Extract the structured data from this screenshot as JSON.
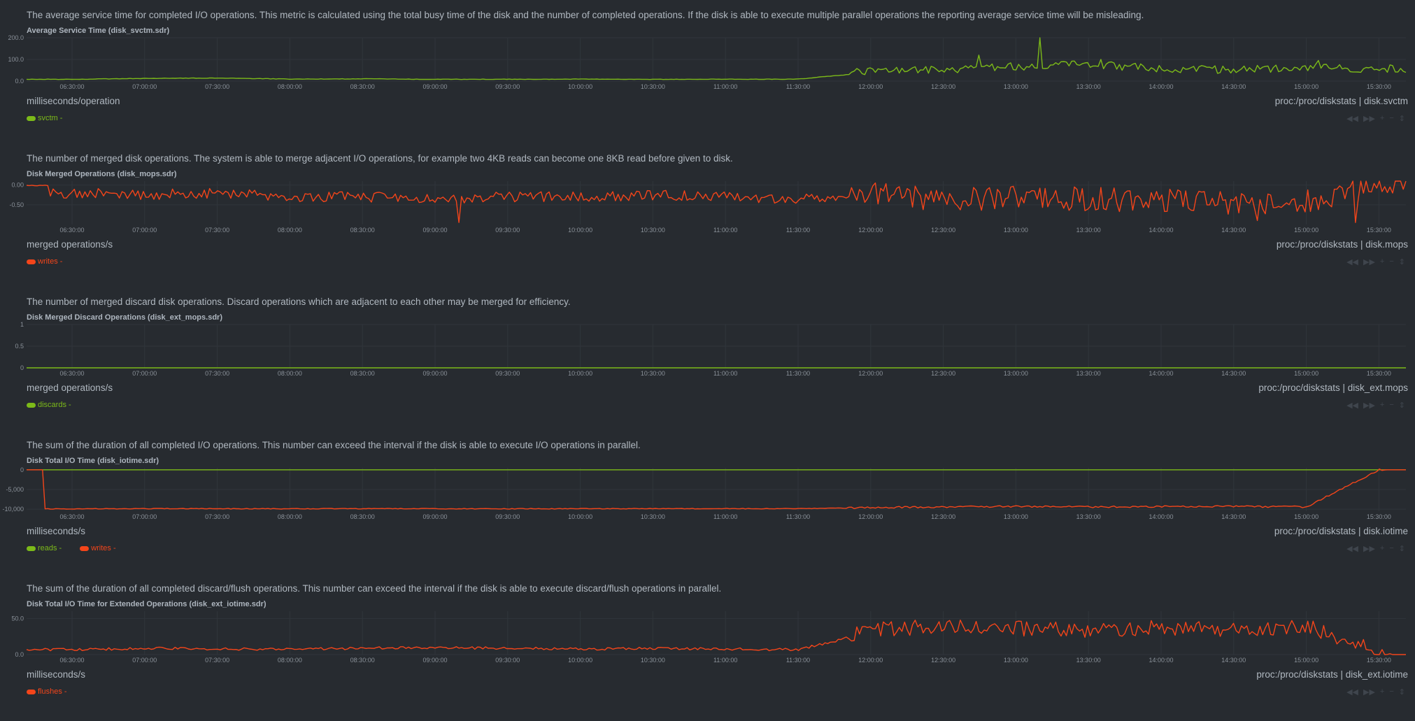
{
  "x_ticks": [
    "06:30:00",
    "07:00:00",
    "07:30:00",
    "08:00:00",
    "08:30:00",
    "09:00:00",
    "09:30:00",
    "10:00:00",
    "10:30:00",
    "11:00:00",
    "11:30:00",
    "12:00:00",
    "12:30:00",
    "13:00:00",
    "13:30:00",
    "14:00:00",
    "14:30:00",
    "15:00:00",
    "15:30:00"
  ],
  "controls": [
    "◀◀",
    "▶▶",
    "+",
    "−",
    "⇕"
  ],
  "sections": [
    {
      "description": "The average service time for completed I/O operations. This metric is calculated using the total busy time of the disk and the number of completed operations. If the disk is able to execute multiple parallel operations the reporting average service time will be misleading.",
      "title": "Average Service Time (disk_svctm.sdr)",
      "units": "milliseconds/operation",
      "context": "proc:/proc/diskstats | disk.svctm",
      "legend": [
        {
          "name": "svctm",
          "value": "-",
          "color": "#7cba19"
        }
      ]
    },
    {
      "description": "The number of merged disk operations. The system is able to merge adjacent I/O operations, for example two 4KB reads can become one 8KB read before given to disk.",
      "title": "Disk Merged Operations (disk_mops.sdr)",
      "units": "merged operations/s",
      "context": "proc:/proc/diskstats | disk.mops",
      "legend": [
        {
          "name": "writes",
          "value": "-",
          "color": "#f4451a"
        }
      ]
    },
    {
      "description": "The number of merged discard disk operations. Discard operations which are adjacent to each other may be merged for efficiency.",
      "title": "Disk Merged Discard Operations (disk_ext_mops.sdr)",
      "units": "merged operations/s",
      "context": "proc:/proc/diskstats | disk_ext.mops",
      "legend": [
        {
          "name": "discards",
          "value": "-",
          "color": "#7cba19"
        }
      ]
    },
    {
      "description": "The sum of the duration of all completed I/O operations. This number can exceed the interval if the disk is able to execute I/O operations in parallel.",
      "title": "Disk Total I/O Time (disk_iotime.sdr)",
      "units": "milliseconds/s",
      "context": "proc:/proc/diskstats | disk.iotime",
      "legend": [
        {
          "name": "reads",
          "value": "-",
          "color": "#7cba19"
        },
        {
          "name": "writes",
          "value": "-",
          "color": "#f4451a"
        }
      ]
    },
    {
      "description": "The sum of the duration of all completed discard/flush operations. This number can exceed the interval if the disk is able to execute discard/flush operations in parallel.",
      "title": "Disk Total I/O Time for Extended Operations (disk_ext_iotime.sdr)",
      "units": "milliseconds/s",
      "context": "proc:/proc/diskstats | disk_ext.iotime",
      "legend": [
        {
          "name": "flushes",
          "value": "-",
          "color": "#f4451a"
        }
      ]
    }
  ],
  "chart_data": [
    {
      "type": "line",
      "title": "Average Service Time (disk_svctm.sdr)",
      "yticks": [
        "200.0",
        "100.0",
        "0.0"
      ],
      "ylim": [
        0,
        200
      ],
      "grid": true,
      "x": [
        "06:30:00",
        "07:00:00",
        "07:30:00",
        "08:00:00",
        "08:30:00",
        "09:00:00",
        "09:30:00",
        "10:00:00",
        "10:30:00",
        "11:00:00",
        "11:30:00",
        "12:00:00",
        "12:30:00",
        "13:00:00",
        "13:30:00",
        "14:00:00",
        "14:30:00",
        "15:00:00",
        "15:30:00"
      ],
      "series": [
        {
          "name": "svctm",
          "color": "#7cba19",
          "values": [
            8,
            12,
            14,
            9,
            10,
            8,
            8,
            9,
            8,
            8,
            9,
            40,
            45,
            60,
            70,
            50,
            45,
            55,
            50
          ],
          "peaks": [
            {
              "x": "13:10:00",
              "y": 205
            },
            {
              "x": "12:45:00",
              "y": 120
            },
            {
              "x": "13:35:00",
              "y": 100
            },
            {
              "x": "15:05:00",
              "y": 95
            }
          ]
        }
      ]
    },
    {
      "type": "line",
      "title": "Disk Merged Operations (disk_mops.sdr)",
      "yticks": [
        "0.00",
        "-0.50"
      ],
      "ylim": [
        -1,
        0.1
      ],
      "grid": true,
      "x": [
        "06:30:00",
        "07:00:00",
        "07:30:00",
        "08:00:00",
        "08:30:00",
        "09:00:00",
        "09:30:00",
        "10:00:00",
        "10:30:00",
        "11:00:00",
        "11:30:00",
        "12:00:00",
        "12:30:00",
        "13:00:00",
        "13:30:00",
        "14:00:00",
        "14:30:00",
        "15:00:00",
        "15:30:00"
      ],
      "series": [
        {
          "name": "writes",
          "color": "#f4451a",
          "values": [
            -0.2,
            -0.25,
            -0.2,
            -0.3,
            -0.3,
            -0.35,
            -0.3,
            -0.3,
            -0.25,
            -0.3,
            -0.35,
            -0.2,
            -0.4,
            -0.3,
            -0.35,
            -0.4,
            -0.45,
            -0.4,
            0.0
          ],
          "troughs": [
            {
              "x": "09:10:00",
              "y": -0.95
            },
            {
              "x": "14:40:00",
              "y": -0.9
            },
            {
              "x": "15:20:00",
              "y": -0.95
            }
          ]
        }
      ]
    },
    {
      "type": "line",
      "title": "Disk Merged Discard Operations (disk_ext_mops.sdr)",
      "yticks": [
        "1",
        "0.5",
        "0"
      ],
      "ylim": [
        0,
        1
      ],
      "grid": true,
      "x": [
        "06:30:00",
        "07:00:00",
        "07:30:00",
        "08:00:00",
        "08:30:00",
        "09:00:00",
        "09:30:00",
        "10:00:00",
        "10:30:00",
        "11:00:00",
        "11:30:00",
        "12:00:00",
        "12:30:00",
        "13:00:00",
        "13:30:00",
        "14:00:00",
        "14:30:00",
        "15:00:00",
        "15:30:00"
      ],
      "series": [
        {
          "name": "discards",
          "color": "#7cba19",
          "values": [
            0,
            0,
            0,
            0,
            0,
            0,
            0,
            0,
            0,
            0,
            0,
            0,
            0,
            0,
            0,
            0,
            0,
            0,
            0
          ]
        }
      ]
    },
    {
      "type": "line",
      "title": "Disk Total I/O Time (disk_iotime.sdr)",
      "yticks": [
        "0",
        "-5,000",
        "-10,000"
      ],
      "ylim": [
        -10500,
        500
      ],
      "grid": true,
      "x": [
        "06:30:00",
        "07:00:00",
        "07:30:00",
        "08:00:00",
        "08:30:00",
        "09:00:00",
        "09:30:00",
        "10:00:00",
        "10:30:00",
        "11:00:00",
        "11:30:00",
        "12:00:00",
        "12:30:00",
        "13:00:00",
        "13:30:00",
        "14:00:00",
        "14:30:00",
        "15:00:00",
        "15:30:00"
      ],
      "series": [
        {
          "name": "reads",
          "color": "#7cba19",
          "values": [
            0,
            0,
            0,
            0,
            0,
            0,
            0,
            0,
            0,
            0,
            0,
            0,
            0,
            0,
            0,
            0,
            0,
            0,
            0
          ]
        },
        {
          "name": "writes",
          "color": "#f4451a",
          "values": [
            -9900,
            -9850,
            -9850,
            -9900,
            -9850,
            -9850,
            -9900,
            -9850,
            -9850,
            -9850,
            -9850,
            -9600,
            -9400,
            -9300,
            -9400,
            -9300,
            -9300,
            -9400,
            0
          ]
        }
      ]
    },
    {
      "type": "line",
      "title": "Disk Total I/O Time for Extended Operations (disk_ext_iotime.sdr)",
      "yticks": [
        "50.0",
        "0.0"
      ],
      "ylim": [
        0,
        60
      ],
      "grid": true,
      "x": [
        "06:30:00",
        "07:00:00",
        "07:30:00",
        "08:00:00",
        "08:30:00",
        "09:00:00",
        "09:30:00",
        "10:00:00",
        "10:30:00",
        "11:00:00",
        "11:30:00",
        "12:00:00",
        "12:30:00",
        "13:00:00",
        "13:30:00",
        "14:00:00",
        "14:30:00",
        "15:00:00",
        "15:30:00"
      ],
      "series": [
        {
          "name": "flushes",
          "color": "#f4451a",
          "values": [
            6,
            8,
            7,
            7,
            8,
            9,
            8,
            7,
            8,
            7,
            6,
            30,
            35,
            32,
            30,
            33,
            30,
            35,
            0
          ]
        }
      ]
    }
  ]
}
